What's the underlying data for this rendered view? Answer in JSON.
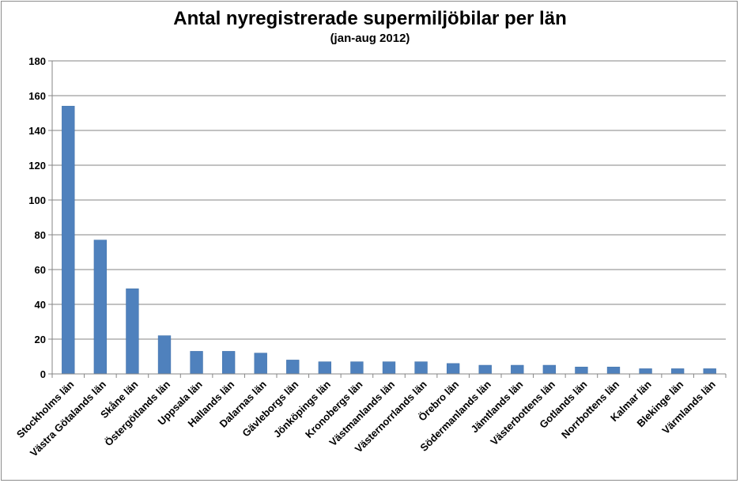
{
  "chart_data": {
    "type": "bar",
    "title": "Antal nyregistrerade supermiljöbilar per län",
    "subtitle": "(jan-aug 2012)",
    "xlabel": "",
    "ylabel": "",
    "ylim": [
      0,
      180
    ],
    "yticks": [
      0,
      20,
      40,
      60,
      80,
      100,
      120,
      140,
      160,
      180
    ],
    "grid": true,
    "legend": "none",
    "bar_color": "#4f81bd",
    "categories": [
      "Stockholms län",
      "Västra Götalands län",
      "Skåne län",
      "Östergötlands län",
      "Uppsala län",
      "Hallands län",
      "Dalarnas län",
      "Gävleborgs län",
      "Jönköpings län",
      "Kronobergs län",
      "Västmanlands län",
      "Västernorrlands län",
      "Örebro län",
      "Södermanlands län",
      "Jämtlands län",
      "Västerbottens län",
      "Gotlands län",
      "Norrbottens län",
      "Kalmar län",
      "Blekinge län",
      "Värmlands län"
    ],
    "values": [
      154,
      77,
      49,
      22,
      13,
      13,
      12,
      8,
      7,
      7,
      7,
      7,
      6,
      5,
      5,
      5,
      4,
      4,
      3,
      3,
      3
    ]
  }
}
